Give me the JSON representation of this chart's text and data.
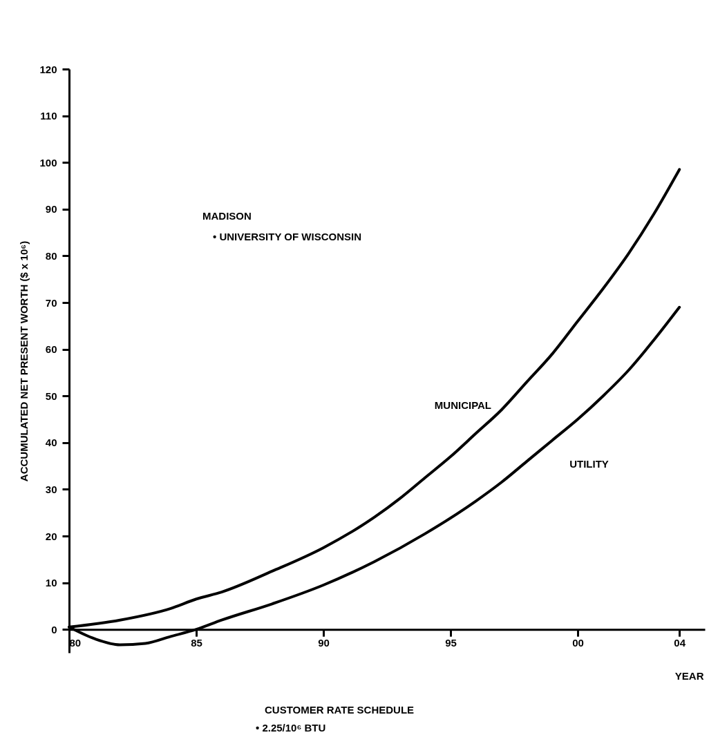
{
  "chart_data": {
    "type": "line",
    "xlabel": "YEAR",
    "ylabel": "ACCUMULATED NET PRESENT WORTH ($ x 10⁶)",
    "xlim": [
      1980,
      2005
    ],
    "ylim": [
      -5,
      120
    ],
    "xticks": [
      {
        "value": 1980,
        "label": "80"
      },
      {
        "value": 1985,
        "label": "85"
      },
      {
        "value": 1990,
        "label": "90"
      },
      {
        "value": 1995,
        "label": "95"
      },
      {
        "value": 2000,
        "label": "00"
      },
      {
        "value": 2004,
        "label": "04"
      }
    ],
    "yticks": [
      0,
      10,
      20,
      30,
      40,
      50,
      60,
      70,
      80,
      90,
      100,
      110,
      120
    ],
    "grid": false,
    "legend": false,
    "line_style": "solid",
    "marker": "none",
    "series": [
      {
        "name": "MUNICIPAL",
        "color": "#000000",
        "x": [
          1980,
          1982,
          1984,
          1985,
          1986,
          1988,
          1990,
          1992,
          1993,
          1994,
          1995,
          1996,
          1997,
          1998,
          1999,
          2000,
          2001,
          2002,
          2003,
          2004
        ],
        "values": [
          0.5,
          2,
          4.5,
          6.5,
          8,
          12.5,
          17.5,
          24,
          28,
          32.5,
          37,
          42,
          47,
          53,
          59,
          66,
          73,
          80.5,
          89,
          98.5
        ]
      },
      {
        "name": "UTILITY",
        "color": "#000000",
        "x": [
          1980,
          1981,
          1982,
          1983,
          1984,
          1985,
          1986,
          1988,
          1990,
          1992,
          1994,
          1996,
          1997,
          1998,
          1999,
          2000,
          2001,
          2002,
          2003,
          2004
        ],
        "values": [
          0.5,
          -2,
          -3.3,
          -3,
          -1.5,
          0,
          2,
          5.5,
          9.5,
          14.5,
          20.5,
          27.5,
          31.5,
          36,
          40.5,
          45,
          50,
          55.5,
          62,
          69
        ]
      }
    ],
    "annotations": [
      "MADISON",
      "• UNIVERSITY OF WISCONSIN",
      "CUSTOMER RATE SCHEDULE",
      "• 2.25/10⁶ BTU"
    ]
  }
}
